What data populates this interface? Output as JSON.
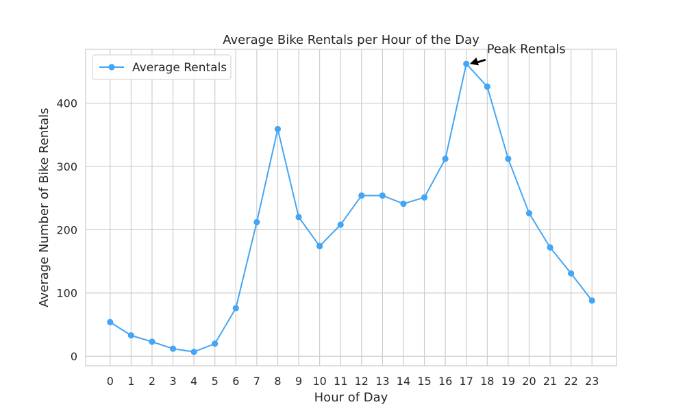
{
  "chart_data": {
    "type": "line",
    "title": "Average Bike Rentals per Hour of the Day",
    "xlabel": "Hour of Day",
    "ylabel": "Average Number of Bike Rentals",
    "categories": [
      "0",
      "1",
      "2",
      "3",
      "4",
      "5",
      "6",
      "7",
      "8",
      "9",
      "10",
      "11",
      "12",
      "13",
      "14",
      "15",
      "16",
      "17",
      "18",
      "19",
      "20",
      "21",
      "22",
      "23"
    ],
    "series": [
      {
        "name": "Average Rentals",
        "color": "#42a5f5",
        "values": [
          54,
          33,
          23,
          12,
          7,
          20,
          76,
          212,
          359,
          220,
          174,
          208,
          254,
          254,
          241,
          251,
          312,
          462,
          426,
          312,
          226,
          172,
          131,
          88
        ]
      }
    ],
    "ylim": [
      -15,
      485
    ],
    "yticks": [
      0,
      100,
      200,
      300,
      400
    ],
    "grid": true,
    "legend_position": "top-left",
    "annotations": [
      {
        "text": "Peak Rentals",
        "x": "17",
        "y": 462
      }
    ]
  }
}
